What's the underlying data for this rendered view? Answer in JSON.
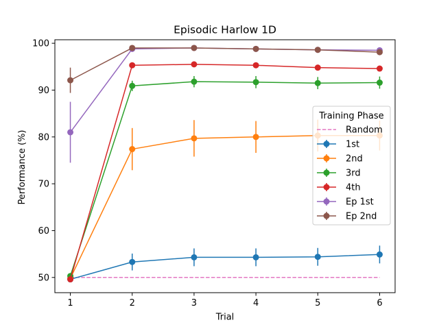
{
  "chart_data": {
    "type": "line",
    "title": "Episodic Harlow 1D",
    "xlabel": "Trial",
    "ylabel": "Performance (%)",
    "xlim": [
      0.75,
      6.25
    ],
    "ylim": [
      46.75,
      100.75
    ],
    "x": [
      1,
      2,
      3,
      4,
      5,
      6
    ],
    "x_ticks": [
      "1",
      "2",
      "3",
      "4",
      "5",
      "6"
    ],
    "y_ticks": [
      "50",
      "60",
      "70",
      "80",
      "90",
      "100"
    ],
    "y_tick_values": [
      50,
      60,
      70,
      80,
      90,
      100
    ],
    "grid": false,
    "legend": {
      "title": "Training Phase",
      "placement": "center-right"
    },
    "reference_line": {
      "name": "Random",
      "value": 50,
      "x_range": [
        1,
        6
      ],
      "color": "#e377c2",
      "style": "dashed"
    },
    "series": [
      {
        "name": "1st",
        "color": "#1f77b4",
        "values": [
          49.6,
          53.3,
          54.3,
          54.3,
          54.4,
          54.9
        ],
        "errors": [
          0.4,
          1.8,
          1.9,
          1.9,
          1.9,
          1.9
        ]
      },
      {
        "name": "2nd",
        "color": "#ff7f0e",
        "values": [
          49.8,
          77.4,
          79.7,
          80.0,
          80.3,
          80.3
        ],
        "errors": [
          0.4,
          4.5,
          3.9,
          3.4,
          3.4,
          3.2
        ]
      },
      {
        "name": "3rd",
        "color": "#2ca02c",
        "values": [
          50.3,
          90.9,
          91.8,
          91.7,
          91.5,
          91.6
        ],
        "errors": [
          0.4,
          1.1,
          1.2,
          1.3,
          1.3,
          1.3
        ]
      },
      {
        "name": "4th",
        "color": "#d62728",
        "values": [
          49.6,
          95.3,
          95.5,
          95.3,
          94.8,
          94.6
        ],
        "errors": [
          0.3,
          0.4,
          0.4,
          0.4,
          0.4,
          0.4
        ]
      },
      {
        "name": "Ep 1st",
        "color": "#9467bd",
        "values": [
          81.0,
          98.8,
          99.0,
          98.8,
          98.6,
          98.5
        ],
        "errors": [
          6.5,
          0.4,
          0.3,
          0.3,
          0.3,
          0.3
        ]
      },
      {
        "name": "Ep 2nd",
        "color": "#8c564b",
        "values": [
          92.1,
          99.0,
          99.0,
          98.8,
          98.6,
          98.1
        ],
        "errors": [
          2.7,
          0.4,
          0.3,
          0.3,
          0.3,
          0.4
        ]
      }
    ]
  }
}
